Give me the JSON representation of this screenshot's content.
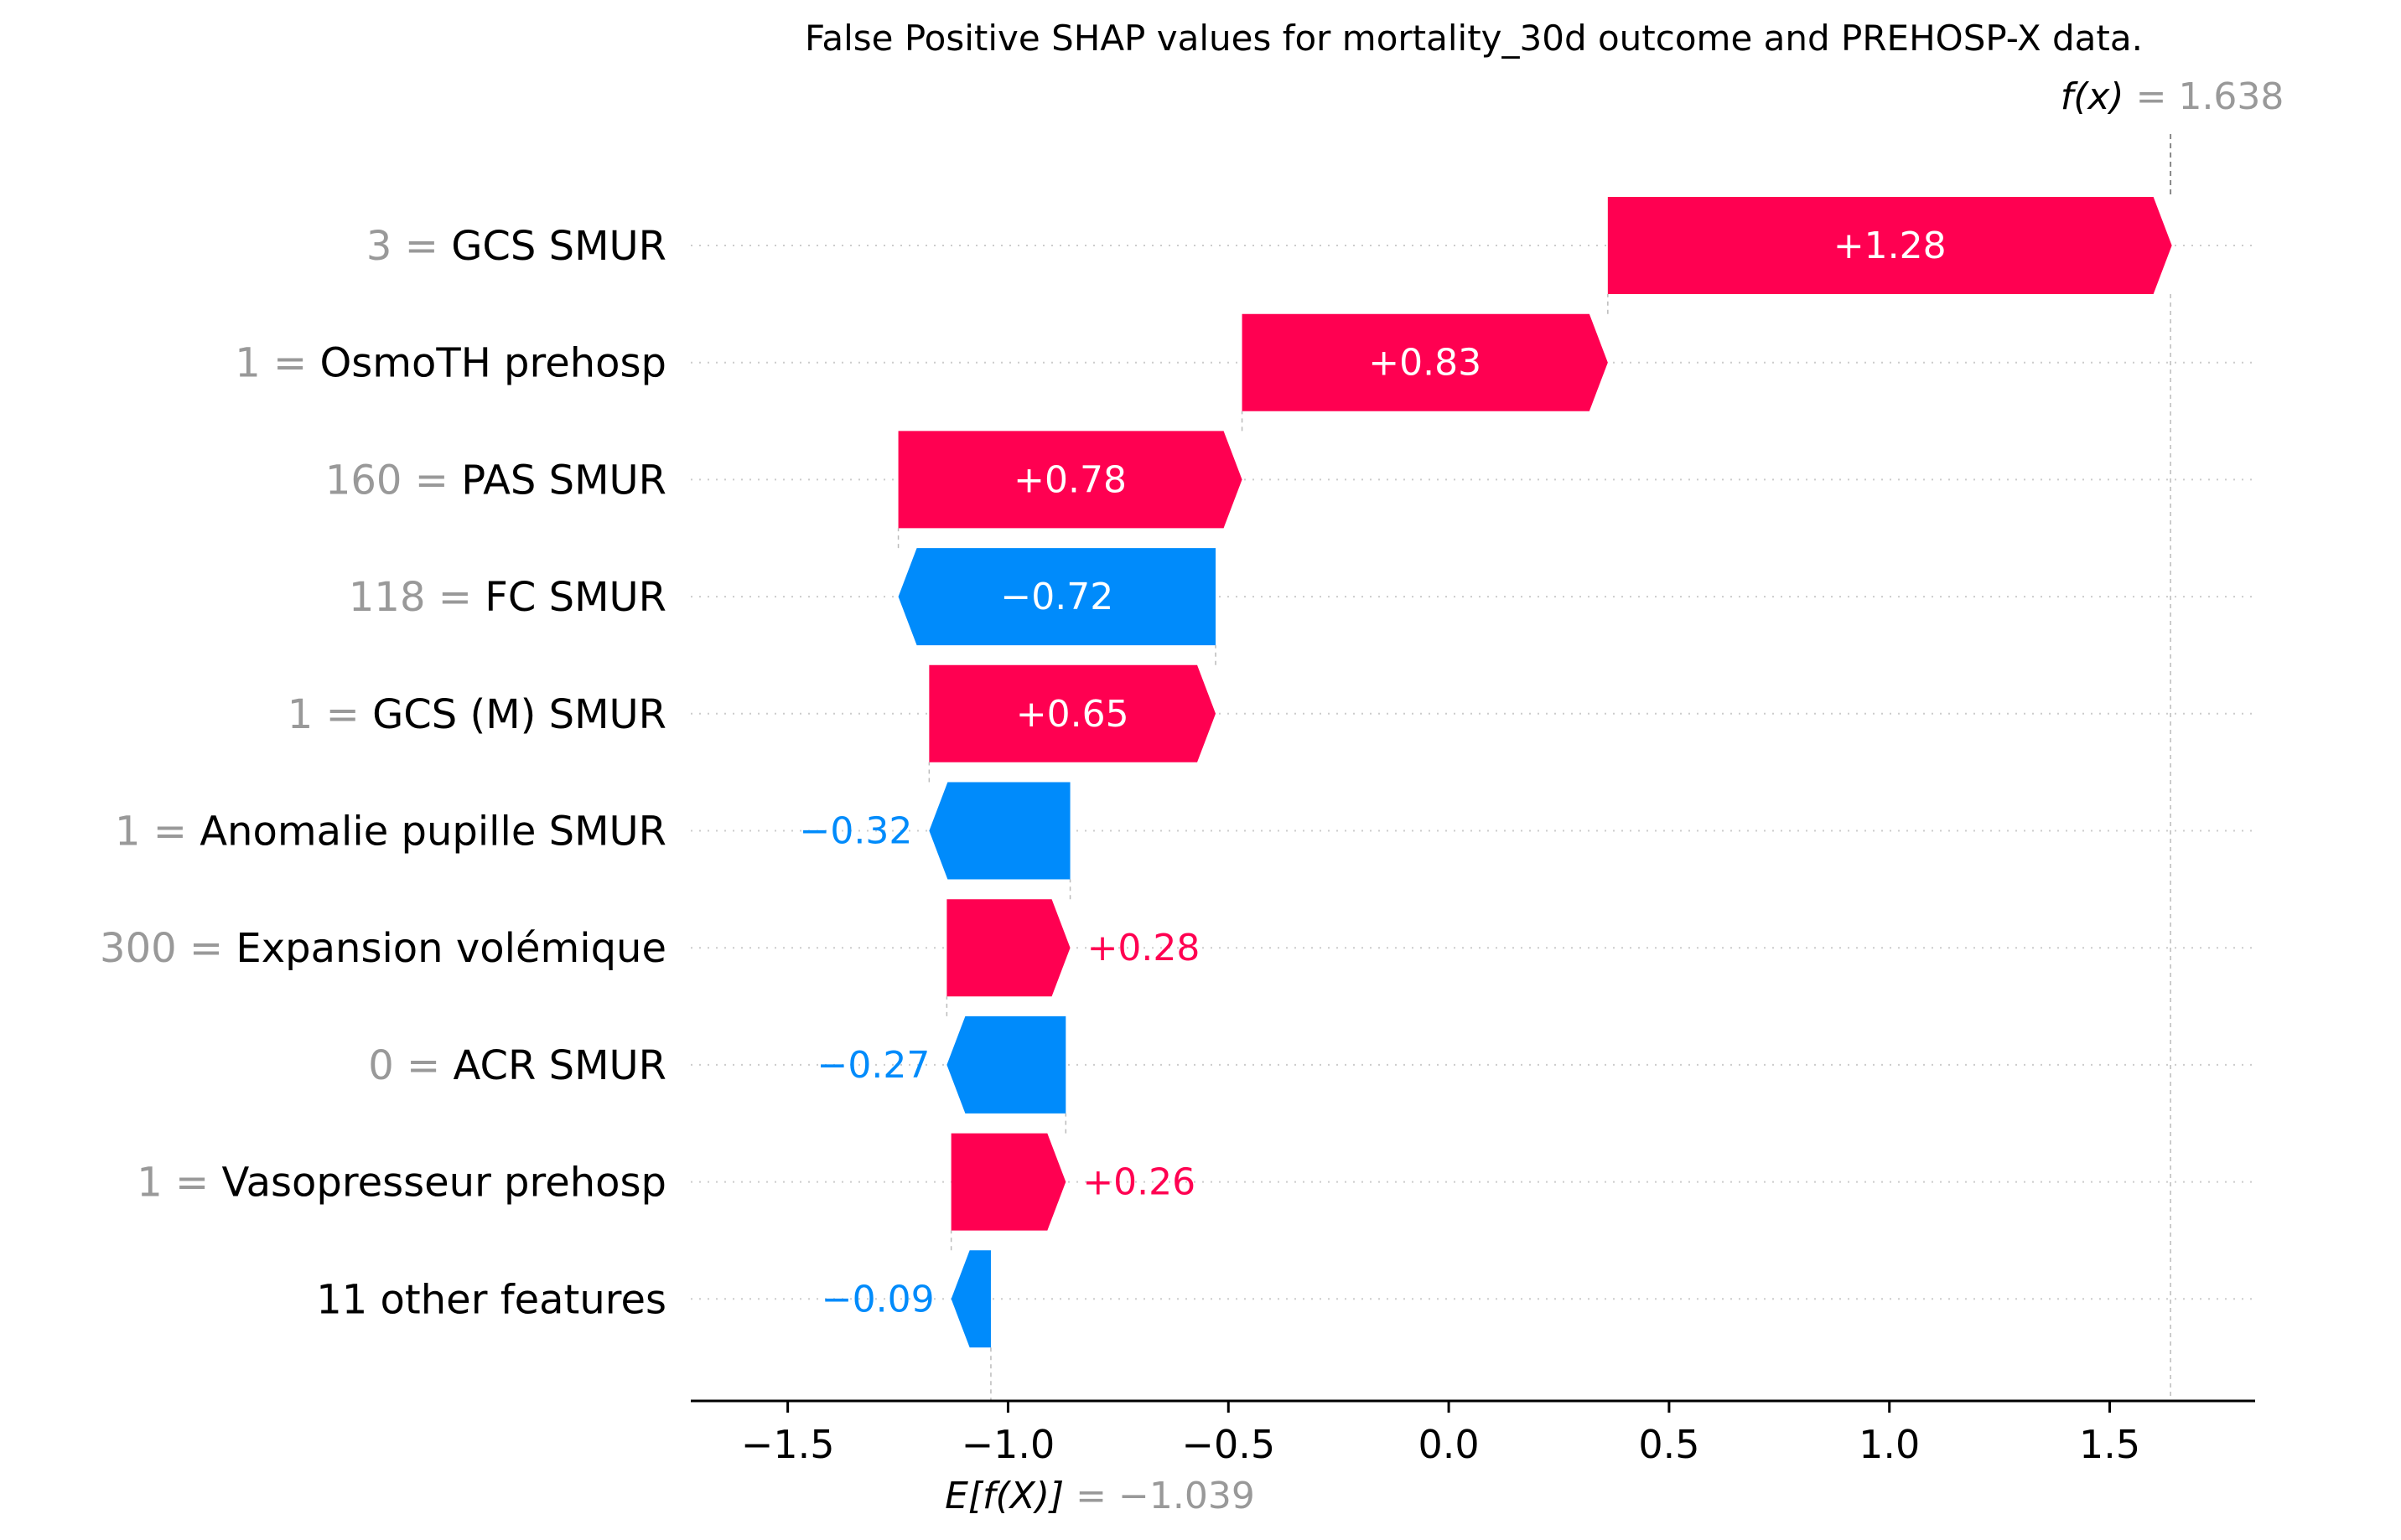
{
  "chart_data": {
    "type": "waterfall",
    "title": "False Positive SHAP values for mortality_30d outcome and PREHOSP-X data.",
    "base_value": -1.039,
    "output_value": 1.638,
    "base_label": "E[f(X)]",
    "base_value_text": "= −1.039",
    "output_label": "f(x)",
    "output_value_text": "= 1.638",
    "xlim": [
      -1.72,
      1.83
    ],
    "x_ticks": [
      -1.5,
      -1.0,
      -0.5,
      0.0,
      0.5,
      1.0,
      1.5
    ],
    "x_tick_labels": [
      "−1.5",
      "−1.0",
      "−0.5",
      "0.0",
      "0.5",
      "1.0",
      "1.5"
    ],
    "features": [
      {
        "value": "3",
        "name": "GCS SMUR",
        "shap": 1.28,
        "label": "+1.28"
      },
      {
        "value": "1",
        "name": "OsmoTH prehosp",
        "shap": 0.83,
        "label": "+0.83"
      },
      {
        "value": "160",
        "name": "PAS  SMUR",
        "shap": 0.78,
        "label": "+0.78"
      },
      {
        "value": "118",
        "name": "FC SMUR",
        "shap": -0.72,
        "label": "−0.72"
      },
      {
        "value": "1",
        "name": "GCS (M) SMUR",
        "shap": 0.65,
        "label": "+0.65"
      },
      {
        "value": "1",
        "name": "Anomalie pupille SMUR",
        "shap": -0.32,
        "label": "−0.32"
      },
      {
        "value": "300",
        "name": "Expansion volémique",
        "shap": 0.28,
        "label": "+0.28"
      },
      {
        "value": "0",
        "name": "ACR SMUR",
        "shap": -0.27,
        "label": "−0.27"
      },
      {
        "value": "1",
        "name": "Vasopresseur prehosp",
        "shap": 0.26,
        "label": "+0.26"
      },
      {
        "value": "",
        "name": "11 other features",
        "shap": -0.09,
        "label": "−0.09"
      }
    ],
    "colors": {
      "positive": "#ff0051",
      "negative": "#008bfb",
      "value_text": "#999999",
      "label_text": "#000000"
    }
  }
}
